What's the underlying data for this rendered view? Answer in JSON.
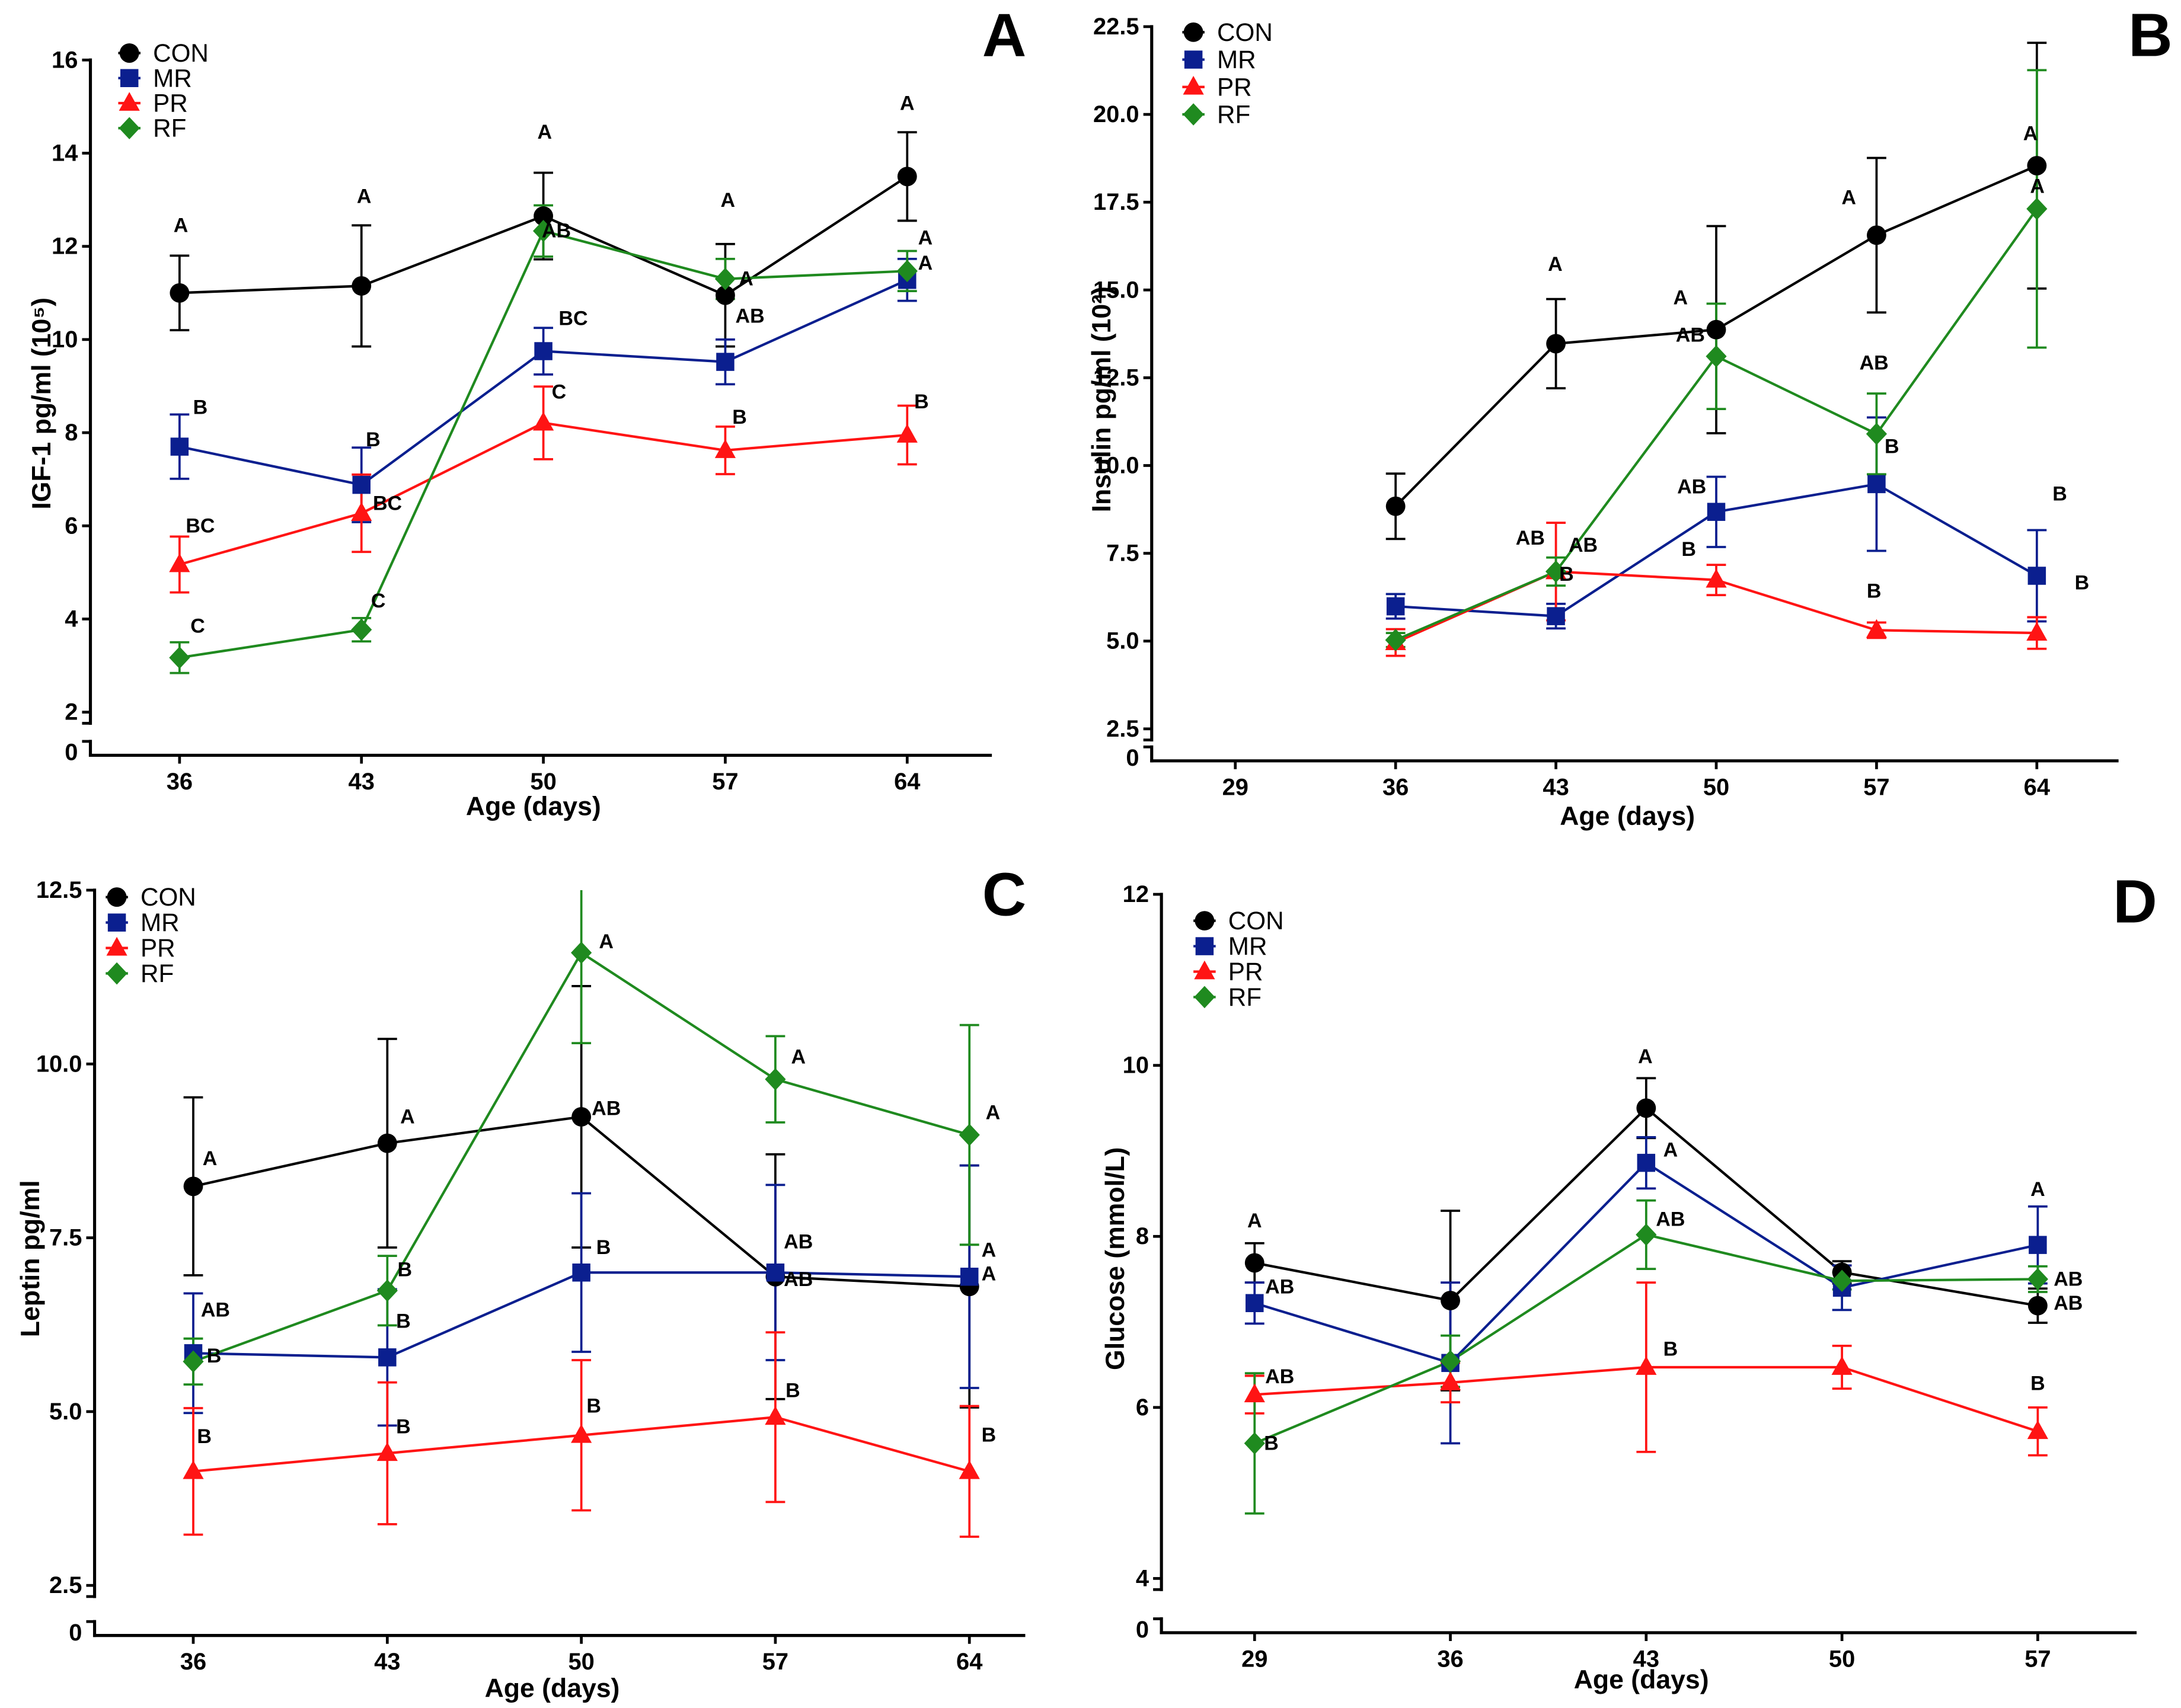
{
  "colors": {
    "CON": "#000000",
    "MR": "#0b1f8f",
    "PR": "#ff1414",
    "RF": "#1f8a1f"
  },
  "chart_data": [
    {
      "panel": "A",
      "type": "line",
      "title": "",
      "xlabel": "Age (days)",
      "ylabel": "IGF-1 pg/ml (10⁵)",
      "x": [
        36,
        43,
        50,
        57,
        64
      ],
      "xticks": [
        36,
        43,
        50,
        57,
        64
      ],
      "xtick_labels": [
        "36",
        "43",
        "50",
        "57",
        "64"
      ],
      "xlim": [
        32.57,
        67.2
      ],
      "ylim": [
        2,
        16
      ],
      "yticks": [
        2,
        4,
        6,
        8,
        10,
        12,
        14,
        16
      ],
      "ytick_labels": [
        "2",
        "4",
        "6",
        "8",
        "10",
        "12",
        "14",
        "16"
      ],
      "axis_break": {
        "below": 2,
        "label": "0"
      },
      "legend": "top-left",
      "series": [
        {
          "name": "CON",
          "color": "#000000",
          "marker": "circle",
          "values": [
            11.0,
            11.15,
            12.65,
            10.95,
            13.5
          ],
          "sem": [
            0.8,
            1.3,
            0.93,
            1.1,
            0.95
          ]
        },
        {
          "name": "MR",
          "color": "#0b1f8f",
          "marker": "square",
          "values": [
            7.7,
            6.88,
            9.75,
            9.52,
            11.28
          ],
          "sem": [
            0.69,
            0.8,
            0.5,
            0.48,
            0.45
          ]
        },
        {
          "name": "PR",
          "color": "#ff1414",
          "marker": "triangle",
          "values": [
            5.17,
            6.27,
            8.21,
            7.62,
            7.95
          ],
          "sem": [
            0.6,
            0.83,
            0.78,
            0.51,
            0.63
          ]
        },
        {
          "name": "RF",
          "color": "#1f8a1f",
          "marker": "diamond",
          "values": [
            3.17,
            3.77,
            12.33,
            11.3,
            11.47
          ],
          "sem": [
            0.33,
            0.25,
            0.55,
            0.43,
            0.43
          ]
        }
      ],
      "annotations": [
        {
          "x": 36.05,
          "y": 12.45,
          "text": "A"
        },
        {
          "x": 36.8,
          "y": 8.54,
          "text": "B"
        },
        {
          "x": 36.8,
          "y": 6.0,
          "text": "BC"
        },
        {
          "x": 36.7,
          "y": 3.85,
          "text": "C"
        },
        {
          "x": 43.1,
          "y": 13.07,
          "text": "A"
        },
        {
          "x": 43.45,
          "y": 7.85,
          "text": "B"
        },
        {
          "x": 44.0,
          "y": 6.48,
          "text": "BC"
        },
        {
          "x": 43.65,
          "y": 4.39,
          "text": "C"
        },
        {
          "x": 50.05,
          "y": 14.45,
          "text": "A"
        },
        {
          "x": 50.5,
          "y": 12.33,
          "text": "AB"
        },
        {
          "x": 51.15,
          "y": 10.45,
          "text": "BC"
        },
        {
          "x": 50.6,
          "y": 8.87,
          "text": "C"
        },
        {
          "x": 57.1,
          "y": 12.99,
          "text": "A"
        },
        {
          "x": 57.8,
          "y": 11.3,
          "text": "A"
        },
        {
          "x": 57.95,
          "y": 10.5,
          "text": "AB"
        },
        {
          "x": 57.55,
          "y": 8.33,
          "text": "B"
        },
        {
          "x": 64.0,
          "y": 15.07,
          "text": "A"
        },
        {
          "x": 64.7,
          "y": 12.18,
          "text": "A"
        },
        {
          "x": 64.7,
          "y": 11.64,
          "text": "A"
        },
        {
          "x": 64.55,
          "y": 8.66,
          "text": "B"
        }
      ]
    },
    {
      "panel": "B",
      "type": "line",
      "title": "",
      "xlabel": "Age (days)",
      "ylabel": "Insulin pg/ml (10²)",
      "x": [
        36,
        43,
        50,
        57,
        64
      ],
      "xticks": [
        29,
        36,
        43,
        50,
        57,
        64
      ],
      "xtick_labels": [
        "29",
        "36",
        "43",
        "50",
        "57",
        "64"
      ],
      "xlim": [
        25.35,
        67.5
      ],
      "ylim": [
        2.5,
        22.5
      ],
      "yticks": [
        2.5,
        5,
        7.5,
        10,
        12.5,
        15,
        17.5,
        20,
        22.5
      ],
      "ytick_labels": [
        "2.5",
        "5.0",
        "7.5",
        "10.0",
        "12.5",
        "15.0",
        "17.5",
        "20.0",
        "22.5"
      ],
      "axis_break": {
        "below": 2.5,
        "label": "0"
      },
      "legend": "top-left",
      "series": [
        {
          "name": "CON",
          "color": "#000000",
          "marker": "circle",
          "values": [
            8.84,
            13.47,
            13.87,
            16.56,
            18.54
          ],
          "sem": [
            0.93,
            1.27,
            2.95,
            2.2,
            3.5
          ]
        },
        {
          "name": "MR",
          "color": "#0b1f8f",
          "marker": "square",
          "values": [
            5.99,
            5.71,
            8.68,
            9.47,
            6.86
          ],
          "sem": [
            0.35,
            0.35,
            1.0,
            1.9,
            1.3
          ]
        },
        {
          "name": "PR",
          "color": "#ff1414",
          "marker": "triangle",
          "values": [
            4.96,
            6.98,
            6.74,
            5.31,
            5.23
          ],
          "sem": [
            0.38,
            1.39,
            0.43,
            0.22,
            0.45
          ]
        },
        {
          "name": "RF",
          "color": "#1f8a1f",
          "marker": "diamond",
          "values": [
            5.03,
            6.98,
            13.11,
            10.9,
            17.31
          ],
          "sem": [
            0.2,
            0.4,
            1.5,
            1.15,
            3.95
          ]
        }
      ],
      "annotations": [
        {
          "x": 42.97,
          "y": 15.73,
          "text": "A"
        },
        {
          "x": 41.88,
          "y": 7.93,
          "text": "AB"
        },
        {
          "x": 44.19,
          "y": 7.73,
          "text": "AB"
        },
        {
          "x": 43.46,
          "y": 6.9,
          "text": "B"
        },
        {
          "x": 48.44,
          "y": 14.78,
          "text": "A"
        },
        {
          "x": 48.87,
          "y": 13.71,
          "text": "AB"
        },
        {
          "x": 48.93,
          "y": 9.39,
          "text": "AB"
        },
        {
          "x": 48.8,
          "y": 7.61,
          "text": "B"
        },
        {
          "x": 55.79,
          "y": 17.63,
          "text": "A"
        },
        {
          "x": 56.89,
          "y": 12.92,
          "text": "AB"
        },
        {
          "x": 57.67,
          "y": 10.54,
          "text": "B"
        },
        {
          "x": 56.89,
          "y": 6.42,
          "text": "B"
        },
        {
          "x": 63.72,
          "y": 19.45,
          "text": "A"
        },
        {
          "x": 64.02,
          "y": 17.95,
          "text": "A"
        },
        {
          "x": 65.0,
          "y": 9.19,
          "text": "B"
        },
        {
          "x": 65.97,
          "y": 6.66,
          "text": "B"
        }
      ]
    },
    {
      "panel": "C",
      "type": "line",
      "title": "",
      "xlabel": "Age (days)",
      "ylabel": "Leptin pg/ml",
      "x": [
        36,
        43,
        50,
        57,
        64
      ],
      "xticks": [
        36,
        43,
        50,
        57,
        64
      ],
      "xtick_labels": [
        "36",
        "43",
        "50",
        "57",
        "64"
      ],
      "xlim": [
        32.44,
        65.96
      ],
      "ylim": [
        2.5,
        12.5
      ],
      "yticks": [
        2.5,
        5,
        7.5,
        10,
        12.5
      ],
      "ytick_labels": [
        "2.5",
        "5.0",
        "7.5",
        "10.0",
        "12.5"
      ],
      "axis_break": {
        "below": 2.5,
        "label": "0"
      },
      "legend": "top-left",
      "series": [
        {
          "name": "CON",
          "color": "#000000",
          "marker": "circle",
          "values": [
            8.24,
            8.86,
            9.24,
            6.94,
            6.8
          ],
          "sem": [
            1.28,
            1.5,
            1.88,
            1.76,
            1.74
          ]
        },
        {
          "name": "MR",
          "color": "#0b1f8f",
          "marker": "square",
          "values": [
            5.84,
            5.78,
            7.0,
            7.0,
            6.94
          ],
          "sem": [
            0.86,
            0.98,
            1.14,
            1.26,
            1.6
          ]
        },
        {
          "name": "PR",
          "color": "#ff1414",
          "marker": "triangle",
          "values": [
            4.14,
            4.4,
            4.66,
            4.92,
            4.14
          ],
          "sem": [
            0.91,
            1.02,
            1.08,
            1.22,
            0.94
          ]
        },
        {
          "name": "RF",
          "color": "#1f8a1f",
          "marker": "diamond",
          "values": [
            5.72,
            6.74,
            11.6,
            9.78,
            8.98
          ],
          "sem": [
            0.33,
            0.5,
            1.3,
            0.62,
            1.58
          ]
        }
      ],
      "annotations": [
        {
          "x": 36.6,
          "y": 8.64,
          "text": "A"
        },
        {
          "x": 36.8,
          "y": 6.46,
          "text": "AB"
        },
        {
          "x": 36.75,
          "y": 5.8,
          "text": "B"
        },
        {
          "x": 36.4,
          "y": 4.64,
          "text": "B"
        },
        {
          "x": 43.73,
          "y": 9.24,
          "text": "A"
        },
        {
          "x": 43.63,
          "y": 7.04,
          "text": "B"
        },
        {
          "x": 43.58,
          "y": 6.3,
          "text": "B"
        },
        {
          "x": 43.58,
          "y": 4.78,
          "text": "B"
        },
        {
          "x": 50.9,
          "y": 11.76,
          "text": "A"
        },
        {
          "x": 50.9,
          "y": 9.36,
          "text": "AB"
        },
        {
          "x": 50.8,
          "y": 7.36,
          "text": "B"
        },
        {
          "x": 50.45,
          "y": 5.08,
          "text": "B"
        },
        {
          "x": 57.83,
          "y": 10.1,
          "text": "A"
        },
        {
          "x": 57.83,
          "y": 7.44,
          "text": "AB"
        },
        {
          "x": 57.83,
          "y": 6.9,
          "text": "AB"
        },
        {
          "x": 57.63,
          "y": 5.3,
          "text": "B"
        },
        {
          "x": 64.85,
          "y": 9.3,
          "text": "A"
        },
        {
          "x": 64.7,
          "y": 7.32,
          "text": "A"
        },
        {
          "x": 64.7,
          "y": 6.98,
          "text": "A"
        },
        {
          "x": 64.7,
          "y": 4.66,
          "text": "B"
        }
      ]
    },
    {
      "panel": "D",
      "type": "line",
      "title": "",
      "xlabel": "Age (days)",
      "ylabel": "Glucose (mmol/L)",
      "x": [
        29,
        36,
        43,
        50,
        57
      ],
      "xticks": [
        29,
        36,
        43,
        50,
        57
      ],
      "xtick_labels": [
        "29",
        "36",
        "43",
        "50",
        "57"
      ],
      "xlim": [
        25.67,
        60.48
      ],
      "ylim": [
        4,
        12
      ],
      "yticks": [
        4,
        6,
        8,
        10,
        12
      ],
      "ytick_labels": [
        "4",
        "6",
        "8",
        "10",
        "12"
      ],
      "axis_break": {
        "below": 4,
        "label": "0"
      },
      "legend": "top-left",
      "series": [
        {
          "name": "CON",
          "color": "#000000",
          "marker": "circle",
          "values": [
            7.69,
            7.25,
            9.5,
            7.58,
            7.19
          ],
          "sem": [
            0.23,
            1.05,
            0.35,
            0.13,
            0.2
          ]
        },
        {
          "name": "MR",
          "color": "#0b1f8f",
          "marker": "square",
          "values": [
            7.22,
            6.52,
            8.86,
            7.4,
            7.9
          ],
          "sem": [
            0.24,
            0.94,
            0.3,
            0.26,
            0.45
          ]
        },
        {
          "name": "PR",
          "color": "#ff1414",
          "marker": "triangle",
          "values": [
            6.15,
            6.29,
            6.47,
            6.47,
            5.72
          ],
          "sem": [
            0.22,
            0.23,
            0.99,
            0.25,
            0.28
          ]
        },
        {
          "name": "RF",
          "color": "#1f8a1f",
          "marker": "diamond",
          "values": [
            5.58,
            6.54,
            8.02,
            7.48,
            7.5
          ],
          "sem": [
            0.82,
            0.3,
            0.4,
            0.1,
            0.15
          ]
        }
      ],
      "annotations": [
        {
          "x": 29.0,
          "y": 8.18,
          "text": "A"
        },
        {
          "x": 29.9,
          "y": 7.41,
          "text": "AB"
        },
        {
          "x": 29.9,
          "y": 6.36,
          "text": "AB"
        },
        {
          "x": 29.6,
          "y": 5.58,
          "text": "B"
        },
        {
          "x": 42.97,
          "y": 10.1,
          "text": "A"
        },
        {
          "x": 43.87,
          "y": 9.01,
          "text": "A"
        },
        {
          "x": 43.87,
          "y": 8.2,
          "text": "AB"
        },
        {
          "x": 43.87,
          "y": 6.68,
          "text": "B"
        },
        {
          "x": 57.0,
          "y": 8.55,
          "text": "A"
        },
        {
          "x": 58.09,
          "y": 7.5,
          "text": "AB"
        },
        {
          "x": 58.09,
          "y": 7.22,
          "text": "AB"
        },
        {
          "x": 57.0,
          "y": 6.28,
          "text": "B"
        }
      ]
    }
  ]
}
